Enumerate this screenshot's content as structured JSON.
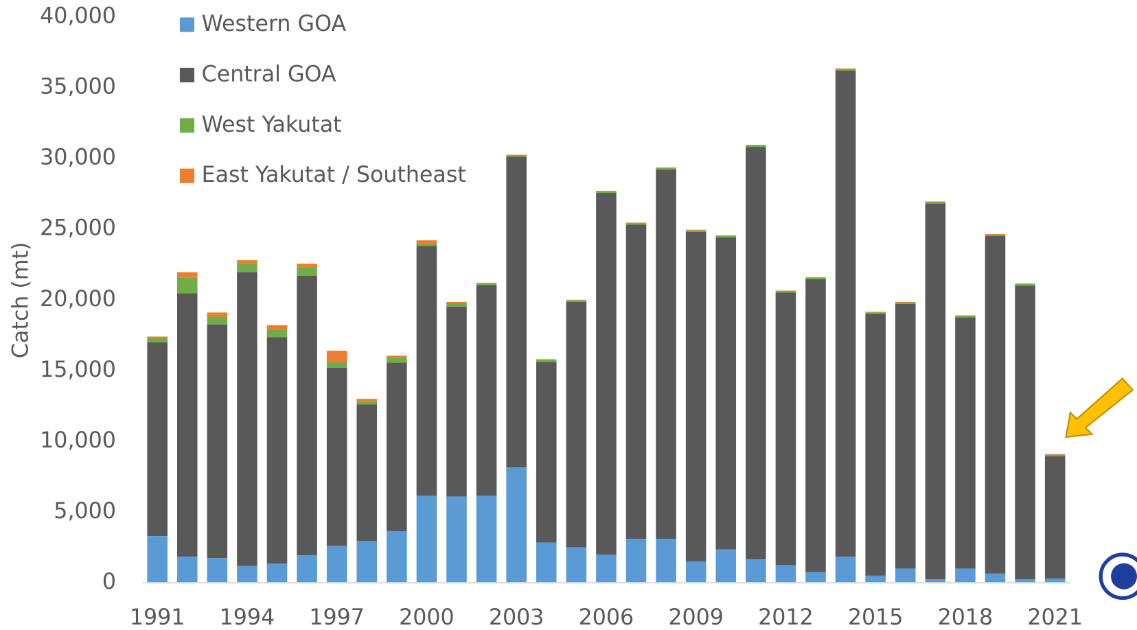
{
  "chart_data": {
    "type": "stacked_bar",
    "y_label": "Catch (mt)",
    "categories": [
      "1991",
      null,
      null,
      "1994",
      null,
      null,
      "1997",
      null,
      null,
      "2000",
      null,
      null,
      "2003",
      null,
      null,
      "2006",
      null,
      null,
      "2009",
      null,
      null,
      "2012",
      null,
      null,
      "2015",
      null,
      null,
      "2018",
      null,
      null,
      "2021"
    ],
    "series": [
      {
        "name": "Western GOA",
        "color": "#5b9bd5",
        "values": [
          3300,
          1850,
          1750,
          1200,
          1350,
          1950,
          2600,
          2950,
          3650,
          6150,
          6100,
          6150,
          8150,
          2850,
          2500,
          2000,
          3100,
          3100,
          1500,
          2350,
          1650,
          1250,
          750,
          1850,
          500,
          1000,
          250,
          1000,
          650,
          250,
          300
        ]
      },
      {
        "name": "Central GOA",
        "color": "#595959",
        "values": [
          13700,
          18600,
          16500,
          20750,
          16000,
          19750,
          12600,
          9650,
          11900,
          17650,
          13400,
          14900,
          21950,
          12750,
          17350,
          25550,
          22200,
          26100,
          23300,
          22050,
          29150,
          19250,
          20700,
          34350,
          18500,
          18700,
          26550,
          17750,
          23850,
          20750,
          8650
        ]
      },
      {
        "name": "West Yakutat",
        "color": "#70ad47",
        "values": [
          300,
          1100,
          550,
          600,
          550,
          600,
          400,
          200,
          350,
          150,
          250,
          50,
          100,
          150,
          100,
          100,
          100,
          100,
          100,
          100,
          100,
          100,
          100,
          100,
          100,
          100,
          100,
          100,
          100,
          100,
          100
        ]
      },
      {
        "name": "East Yakutat / Southeast",
        "color": "#ed7d31",
        "values": [
          100,
          400,
          300,
          250,
          300,
          250,
          800,
          200,
          150,
          250,
          100,
          100,
          50,
          50,
          50,
          50,
          50,
          50,
          50,
          50,
          50,
          50,
          50,
          50,
          50,
          50,
          50,
          50,
          50,
          50,
          50
        ]
      }
    ],
    "ylim": [
      0,
      40000
    ],
    "yticks": [
      0,
      {
        "value": 5000,
        "label": "5,000"
      },
      {
        "value": 10000,
        "label": "10,000"
      },
      {
        "value": 15000,
        "label": "15,000"
      },
      {
        "value": 20000,
        "label": "20,000"
      },
      {
        "value": 25000,
        "label": "25,000"
      },
      {
        "value": 30000,
        "label": "30,000"
      },
      {
        "value": 35000,
        "label": "35,000"
      },
      {
        "value": 40000,
        "label": "40,000"
      }
    ],
    "grid": false
  }
}
